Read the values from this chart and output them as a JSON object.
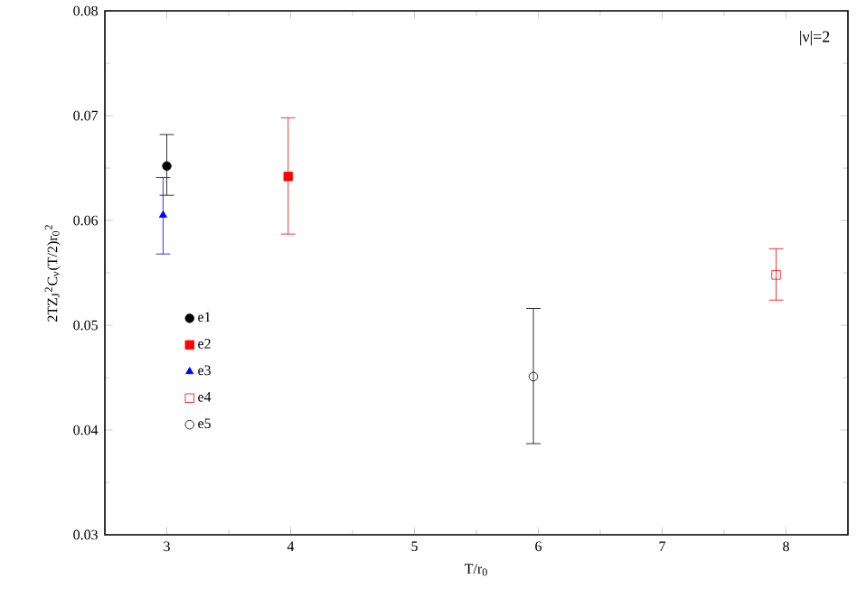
{
  "chart_data": {
    "type": "scatter",
    "xlabel": "T/r$_{0}$",
    "ylabel": "2TZ$_{J}$$^{2}$C$_{ν}$(T/2)r$_{0}$$^{2}$",
    "annotations": [
      "|ν|=2"
    ],
    "xlim": [
      2.5,
      8.5
    ],
    "ylim": [
      0.03,
      0.08
    ],
    "xticks": [
      3,
      4,
      5,
      6,
      7,
      8
    ],
    "yticks": [
      0.03,
      0.04,
      0.05,
      0.06,
      0.07,
      0.08
    ],
    "grid": false,
    "legend": "left",
    "series": [
      {
        "name": "e1",
        "color": "#000000",
        "marker": "circle",
        "x": [
          3
        ],
        "values": [
          0.0652
        ],
        "errors": [
          [
            0.0624,
            0.0682
          ]
        ]
      },
      {
        "name": "e2",
        "color": "#ff0000",
        "marker": "square",
        "x": [
          3.98
        ],
        "values": [
          0.0642
        ],
        "errors": [
          [
            0.0587,
            0.0698
          ]
        ]
      },
      {
        "name": "e3",
        "color": "#0000ff",
        "marker": "triangle",
        "x": [
          2.97
        ],
        "values": [
          0.0605
        ],
        "errors": [
          [
            0.0568,
            0.0641
          ]
        ]
      },
      {
        "name": "e4",
        "color": "#ff0000",
        "marker": "square open",
        "x": [
          7.92
        ],
        "values": [
          0.0548
        ],
        "errors": [
          [
            0.0524,
            0.0573
          ]
        ]
      },
      {
        "name": "e5",
        "color": "#000000",
        "marker": "circle open",
        "x": [
          5.96
        ],
        "values": [
          0.0451
        ],
        "errors": [
          [
            0.0387,
            0.0516
          ]
        ]
      }
    ]
  }
}
